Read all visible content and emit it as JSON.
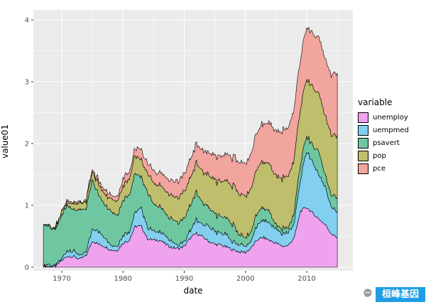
{
  "figure": {
    "background": "#FFFFFF",
    "panel_background": "#EBEBEB",
    "grid_color": "#FFFFFF",
    "tick_text_color": "#4D4D4D"
  },
  "chart_data": {
    "type": "area",
    "stacked": true,
    "title": "",
    "xlabel": "date",
    "ylabel": "value01",
    "legend_title": "variable",
    "legend_position": "right",
    "grid": true,
    "x_ticks": [
      1970,
      1980,
      1990,
      2000,
      2010
    ],
    "x_minor_ticks": [
      1975,
      1985,
      1995,
      2005,
      2015
    ],
    "y_ticks": [
      0,
      1,
      2,
      3,
      4
    ],
    "y_minor_ticks": [
      0.5,
      1.5,
      2.5,
      3.5
    ],
    "x_domain": [
      1967,
      2015.3
    ],
    "y_domain": [
      0,
      4
    ],
    "years": [
      1967,
      1968,
      1969,
      1970,
      1971,
      1972,
      1973,
      1974,
      1975,
      1976,
      1977,
      1978,
      1979,
      1980,
      1981,
      1982,
      1983,
      1984,
      1985,
      1986,
      1987,
      1988,
      1989,
      1990,
      1991,
      1992,
      1993,
      1994,
      1995,
      1996,
      1997,
      1998,
      1999,
      2000,
      2001,
      2002,
      2003,
      2004,
      2005,
      2006,
      2007,
      2008,
      2009,
      2010,
      2011,
      2012,
      2013,
      2014,
      2015
    ],
    "series": [
      {
        "name": "unemploy",
        "color": "#EFA3EF",
        "values": [
          0.02,
          0.01,
          0.01,
          0.11,
          0.18,
          0.17,
          0.13,
          0.19,
          0.43,
          0.37,
          0.34,
          0.28,
          0.27,
          0.39,
          0.44,
          0.66,
          0.66,
          0.46,
          0.44,
          0.44,
          0.37,
          0.32,
          0.3,
          0.34,
          0.47,
          0.55,
          0.49,
          0.42,
          0.37,
          0.36,
          0.32,
          0.28,
          0.25,
          0.24,
          0.32,
          0.45,
          0.48,
          0.43,
          0.39,
          0.34,
          0.35,
          0.49,
          0.91,
          0.97,
          0.87,
          0.78,
          0.69,
          0.55,
          0.47
        ]
      },
      {
        "name": "uempmed",
        "color": "#82CFF0",
        "values": [
          0.03,
          0.02,
          0.02,
          0.04,
          0.1,
          0.1,
          0.06,
          0.06,
          0.21,
          0.2,
          0.14,
          0.09,
          0.07,
          0.12,
          0.14,
          0.22,
          0.29,
          0.18,
          0.14,
          0.14,
          0.12,
          0.09,
          0.04,
          0.06,
          0.13,
          0.22,
          0.2,
          0.25,
          0.2,
          0.2,
          0.19,
          0.13,
          0.11,
          0.09,
          0.13,
          0.24,
          0.29,
          0.27,
          0.23,
          0.2,
          0.21,
          0.25,
          0.52,
          0.92,
          0.82,
          0.72,
          0.61,
          0.44,
          0.43
        ]
      },
      {
        "name": "psavert",
        "color": "#6FC7A1",
        "values": [
          0.68,
          0.6,
          0.57,
          0.69,
          0.74,
          0.67,
          0.73,
          0.71,
          0.78,
          0.6,
          0.54,
          0.54,
          0.51,
          0.56,
          0.61,
          0.62,
          0.49,
          0.57,
          0.44,
          0.41,
          0.35,
          0.38,
          0.36,
          0.38,
          0.41,
          0.45,
          0.35,
          0.29,
          0.29,
          0.27,
          0.27,
          0.29,
          0.16,
          0.15,
          0.16,
          0.2,
          0.19,
          0.18,
          0.05,
          0.09,
          0.07,
          0.19,
          0.27,
          0.24,
          0.27,
          0.37,
          0.19,
          0.19,
          0.24
        ]
      },
      {
        "name": "pop",
        "color": "#BEBE6C",
        "values": [
          0.0,
          0.01,
          0.03,
          0.05,
          0.07,
          0.09,
          0.1,
          0.12,
          0.14,
          0.16,
          0.18,
          0.2,
          0.22,
          0.24,
          0.26,
          0.27,
          0.29,
          0.31,
          0.33,
          0.35,
          0.36,
          0.38,
          0.4,
          0.42,
          0.45,
          0.47,
          0.5,
          0.52,
          0.55,
          0.57,
          0.6,
          0.63,
          0.65,
          0.68,
          0.7,
          0.72,
          0.75,
          0.77,
          0.79,
          0.82,
          0.84,
          0.87,
          0.89,
          0.91,
          0.93,
          0.95,
          0.96,
          0.98,
          1.0
        ]
      },
      {
        "name": "pce",
        "color": "#F2A49E",
        "values": [
          0.0,
          0.0,
          0.01,
          0.01,
          0.02,
          0.03,
          0.03,
          0.04,
          0.04,
          0.05,
          0.06,
          0.07,
          0.09,
          0.11,
          0.12,
          0.13,
          0.15,
          0.17,
          0.19,
          0.21,
          0.23,
          0.25,
          0.27,
          0.28,
          0.29,
          0.31,
          0.33,
          0.36,
          0.38,
          0.41,
          0.44,
          0.47,
          0.5,
          0.54,
          0.57,
          0.6,
          0.63,
          0.67,
          0.71,
          0.75,
          0.78,
          0.81,
          0.8,
          0.83,
          0.86,
          0.9,
          0.92,
          0.97,
          1.0
        ]
      }
    ],
    "stack_order_bottom_to_top": [
      "unemploy",
      "uempmed",
      "psavert",
      "pop",
      "pce"
    ]
  },
  "watermark": {
    "text": "桓峰基因",
    "bg_color": "#1E9DE4",
    "text_color": "#FFFFFF",
    "icon": "share-icon"
  }
}
